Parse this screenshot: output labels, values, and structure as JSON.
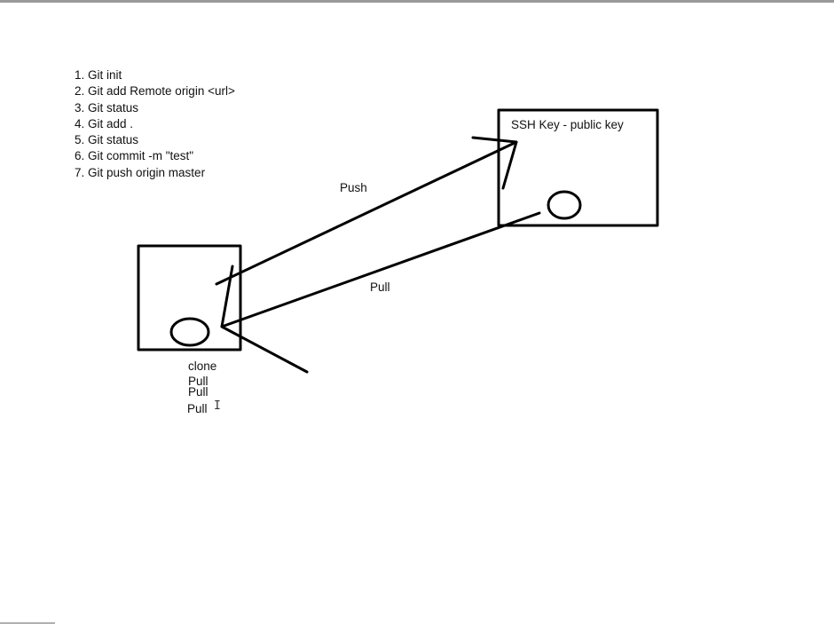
{
  "steps": [
    "1. Git init",
    "2. Git add Remote origin <url>",
    "3. Git status",
    "4. Git add .",
    "5. Git status",
    "6. Git commit -m \"test\"",
    "7. Git push origin master"
  ],
  "remote_box": {
    "label": "SSH Key - public key"
  },
  "arrows": {
    "push_label": "Push",
    "pull_label": "Pull"
  },
  "local_notes": [
    "clone",
    "Pull",
    "Pull",
    "Pull"
  ],
  "cursor_icon": "text-cursor-icon",
  "stroke_color": "#000000"
}
